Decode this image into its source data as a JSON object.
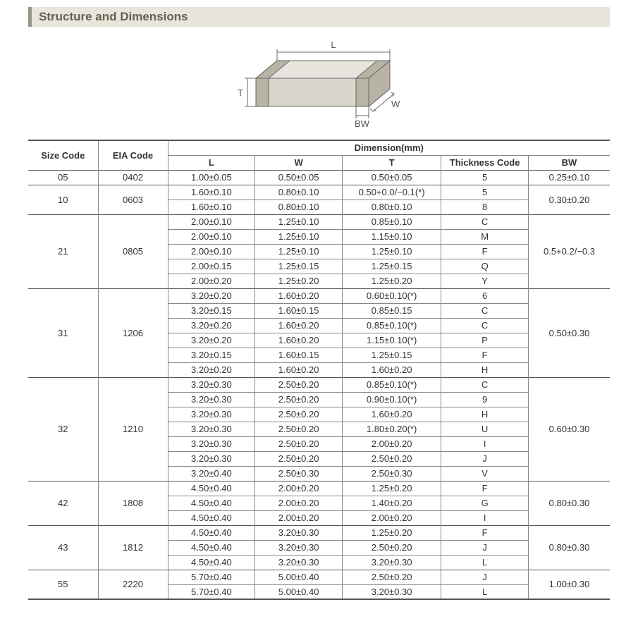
{
  "section_title": "Structure and Dimensions",
  "diagram": {
    "labels": {
      "L": "L",
      "W": "W",
      "T": "T",
      "BW": "BW"
    },
    "stroke": "#666666",
    "fill_top": "#e6e4dd",
    "fill_front": "#d8d5cc",
    "fill_side": "#cac6bb",
    "fill_term": "#b8b3a4"
  },
  "columns": {
    "size": "Size Code",
    "eia": "EIA Code",
    "dim_group": "Dimension(mm)",
    "L": "L",
    "W": "W",
    "T": "T",
    "thk": "Thickness  Code",
    "BW": "BW"
  },
  "groups": [
    {
      "size": "05",
      "eia": "0402",
      "bw": "0.25±0.10",
      "rows": [
        {
          "L": "1.00±0.05",
          "W": "0.50±0.05",
          "T": "0.50±0.05",
          "thk": "5"
        }
      ]
    },
    {
      "size": "10",
      "eia": "0603",
      "bw": "0.30±0.20",
      "rows": [
        {
          "L": "1.60±0.10",
          "W": "0.80±0.10",
          "T": "0.50+0.0/−0.1(*)",
          "thk": "5"
        },
        {
          "L": "1.60±0.10",
          "W": "0.80±0.10",
          "T": "0.80±0.10",
          "thk": "8"
        }
      ]
    },
    {
      "size": "21",
      "eia": "0805",
      "bw": "0.5+0.2/−0.3",
      "rows": [
        {
          "L": "2.00±0.10",
          "W": "1.25±0.10",
          "T": "0.85±0.10",
          "thk": "C"
        },
        {
          "L": "2.00±0.10",
          "W": "1.25±0.10",
          "T": "1.15±0.10",
          "thk": "M"
        },
        {
          "L": "2.00±0.10",
          "W": "1.25±0.10",
          "T": "1.25±0.10",
          "thk": "F"
        },
        {
          "L": "2.00±0.15",
          "W": "1.25±0.15",
          "T": "1.25±0.15",
          "thk": "Q"
        },
        {
          "L": "2.00±0.20",
          "W": "1.25±0.20",
          "T": "1.25±0.20",
          "thk": "Y"
        }
      ]
    },
    {
      "size": "31",
      "eia": "1206",
      "bw": "0.50±0.30",
      "rows": [
        {
          "L": "3.20±0.20",
          "W": "1.60±0.20",
          "T": "0.60±0.10(*)",
          "thk": "6"
        },
        {
          "L": "3.20±0.15",
          "W": "1.60±0.15",
          "T": "0.85±0.15",
          "thk": "C"
        },
        {
          "L": "3.20±0.20",
          "W": "1.60±0.20",
          "T": "0.85±0.10(*)",
          "thk": "C"
        },
        {
          "L": "3.20±0.20",
          "W": "1.60±0.20",
          "T": "1.15±0.10(*)",
          "thk": "P"
        },
        {
          "L": "3.20±0.15",
          "W": "1.60±0.15",
          "T": "1.25±0.15",
          "thk": "F"
        },
        {
          "L": "3.20±0.20",
          "W": "1.60±0.20",
          "T": "1.60±0.20",
          "thk": "H"
        }
      ]
    },
    {
      "size": "32",
      "eia": "1210",
      "bw": "0.60±0.30",
      "rows": [
        {
          "L": "3.20±0.30",
          "W": "2.50±0.20",
          "T": "0.85±0.10(*)",
          "thk": "C"
        },
        {
          "L": "3.20±0.30",
          "W": "2.50±0.20",
          "T": "0.90±0.10(*)",
          "thk": "9"
        },
        {
          "L": "3.20±0.30",
          "W": "2.50±0.20",
          "T": "1.60±0.20",
          "thk": "H"
        },
        {
          "L": "3.20±0.30",
          "W": "2.50±0.20",
          "T": "1.80±0.20(*)",
          "thk": "U"
        },
        {
          "L": "3.20±0.30",
          "W": "2.50±0.20",
          "T": "2.00±0.20",
          "thk": "I"
        },
        {
          "L": "3.20±0.30",
          "W": "2.50±0.20",
          "T": "2.50±0.20",
          "thk": "J"
        },
        {
          "L": "3.20±0.40",
          "W": "2.50±0.30",
          "T": "2.50±0.30",
          "thk": "V"
        }
      ]
    },
    {
      "size": "42",
      "eia": "1808",
      "bw": "0.80±0.30",
      "rows": [
        {
          "L": "4.50±0.40",
          "W": "2.00±0.20",
          "T": "1.25±0.20",
          "thk": "F"
        },
        {
          "L": "4.50±0.40",
          "W": "2.00±0.20",
          "T": "1.40±0.20",
          "thk": "G"
        },
        {
          "L": "4.50±0.40",
          "W": "2.00±0.20",
          "T": "2.00±0.20",
          "thk": "I"
        }
      ]
    },
    {
      "size": "43",
      "eia": "1812",
      "bw": "0.80±0.30",
      "rows": [
        {
          "L": "4.50±0.40",
          "W": "3.20±0.30",
          "T": "1.25±0.20",
          "thk": "F"
        },
        {
          "L": "4.50±0.40",
          "W": "3.20±0.30",
          "T": "2.50±0.20",
          "thk": "J"
        },
        {
          "L": "4.50±0.40",
          "W": "3.20±0.30",
          "T": "3.20±0.30",
          "thk": "L"
        }
      ]
    },
    {
      "size": "55",
      "eia": "2220",
      "bw": "1.00±0.30",
      "rows": [
        {
          "L": "5.70±0.40",
          "W": "5.00±0.40",
          "T": "2.50±0.20",
          "thk": "J"
        },
        {
          "L": "5.70±0.40",
          "W": "5.00±0.40",
          "T": "3.20±0.30",
          "thk": "L"
        }
      ]
    }
  ]
}
